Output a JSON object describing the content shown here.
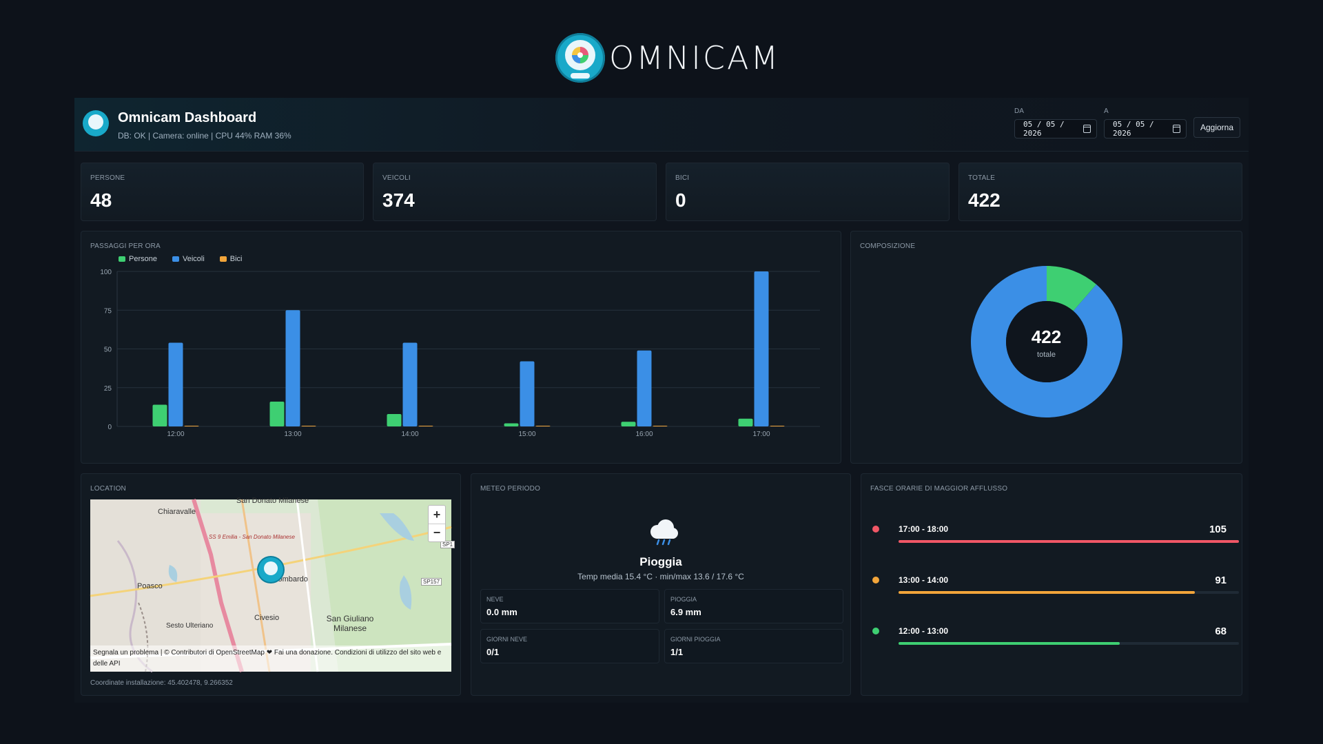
{
  "brand": {
    "name": "OMNICAM"
  },
  "header": {
    "title": "Omnicam Dashboard",
    "status": "DB: OK | Camera: online | CPU 44% RAM 36%",
    "from_label": "DA",
    "from_value": "05 / 05 / 2026",
    "to_label": "A",
    "to_value": "05 / 05 / 2026",
    "refresh_label": "Aggiorna"
  },
  "stats": [
    {
      "label": "PERSONE",
      "value": "48"
    },
    {
      "label": "VEICOLI",
      "value": "374"
    },
    {
      "label": "BICI",
      "value": "0"
    },
    {
      "label": "TOTALE",
      "value": "422"
    }
  ],
  "colors": {
    "persone": "#3ecf72",
    "veicoli": "#3b8fe6",
    "bici": "#f2a53a",
    "peak_red": "#f05766",
    "accent": "#19a9c9"
  },
  "chart_data": [
    {
      "type": "bar",
      "title": "PASSAGGI PER ORA",
      "categories": [
        "12:00",
        "13:00",
        "14:00",
        "15:00",
        "16:00",
        "17:00"
      ],
      "series": [
        {
          "name": "Persone",
          "values": [
            14,
            16,
            8,
            2,
            3,
            5
          ]
        },
        {
          "name": "Veicoli",
          "values": [
            54,
            75,
            54,
            42,
            49,
            100
          ]
        },
        {
          "name": "Bici",
          "values": [
            0,
            0,
            0,
            0,
            0,
            0
          ]
        }
      ],
      "yticks": [
        "0",
        "25",
        "50",
        "75",
        "100"
      ],
      "ylim": [
        0,
        100
      ],
      "legend": "top-left",
      "grid": true
    },
    {
      "type": "pie",
      "title": "COMPOSIZIONE",
      "labels": [
        "Persone",
        "Veicoli",
        "Bici"
      ],
      "values": [
        48,
        374,
        0
      ],
      "center_value": "422",
      "center_label": "totale"
    }
  ],
  "location": {
    "title": "LOCATION",
    "zoom_in": "+",
    "zoom_out": "−",
    "attribution": "Segnala un problema | © Contributori di OpenStreetMap ❤ Fai una donazione. Condizioni di utilizzo del sito web e delle API",
    "coords": "Coordinate installazione: 45.402478, 9.266352",
    "places": [
      "San Donato Milanese",
      "Chiaravalle",
      "Poasco",
      "Colombardo",
      "Civesio",
      "San Giuliano Milanese",
      "Sesto Ulteriano",
      "SS 9 Emilia - San Donato Milanese",
      "SP157",
      "SP1"
    ]
  },
  "weather": {
    "title": "METEO PERIODO",
    "condition": "Pioggia",
    "temps": "Temp media 15.4 °C · min/max 13.6 / 17.6 °C",
    "boxes": [
      {
        "label": "NEVE",
        "value": "0.0 mm"
      },
      {
        "label": "PIOGGIA",
        "value": "6.9 mm"
      },
      {
        "label": "GIORNI NEVE",
        "value": "0/1"
      },
      {
        "label": "GIORNI PIOGGIA",
        "value": "1/1"
      }
    ]
  },
  "peaks": {
    "title": "FASCE ORARIE DI MAGGIOR AFFLUSSO",
    "rows": [
      {
        "range": "17:00 - 18:00",
        "count": "105",
        "fraction": 1.0,
        "color": "#f05766"
      },
      {
        "range": "13:00 - 14:00",
        "count": "91",
        "fraction": 0.87,
        "color": "#f2a53a"
      },
      {
        "range": "12:00 - 13:00",
        "count": "68",
        "fraction": 0.65,
        "color": "#3ecf72"
      }
    ]
  }
}
